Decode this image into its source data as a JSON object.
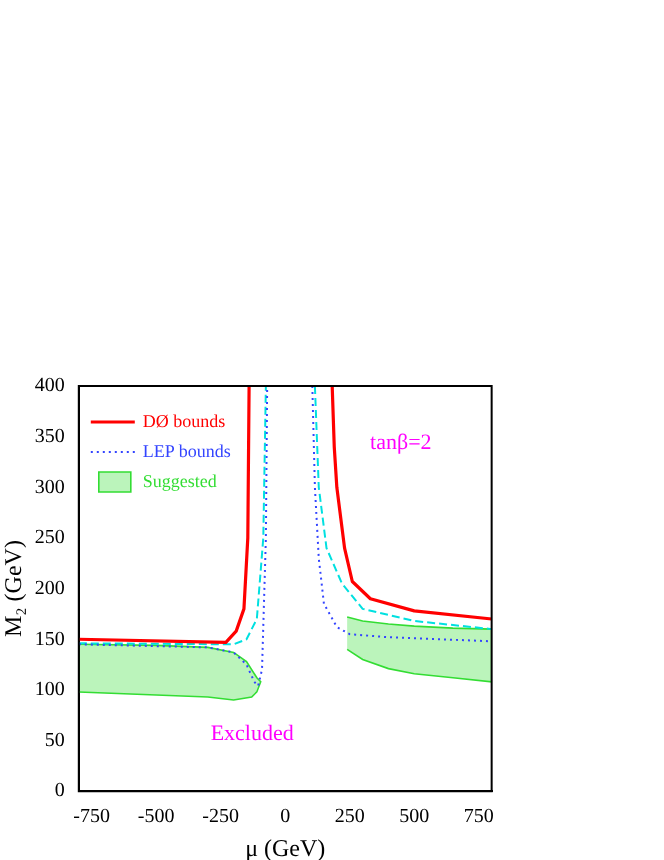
{
  "chart_data": {
    "type": "line",
    "xlabel": "μ (GeV)",
    "ylabel": "M₂ (GeV)",
    "xlim": [
      -800,
      800
    ],
    "ylim": [
      0,
      400
    ],
    "xticks": [
      -750,
      -500,
      -250,
      0,
      250,
      500,
      750
    ],
    "yticks": [
      0,
      50,
      100,
      150,
      200,
      250,
      300,
      350,
      400
    ],
    "grid": false,
    "legend": "top left",
    "marker": "none",
    "series": [
      {
        "name": "DØ bounds",
        "color": "#ff0000",
        "line_style": "solid",
        "x": [
          -800,
          -230,
          -190,
          -160,
          -145,
          -140
        ],
        "values": [
          150,
          147,
          158,
          180,
          250,
          400
        ]
      },
      {
        "color": "#ff0000",
        "line_style": "solid",
        "x": [
          182,
          190,
          200,
          230,
          260,
          330,
          500,
          800
        ],
        "values": [
          400,
          340,
          300,
          240,
          207,
          190,
          178,
          170
        ]
      },
      {
        "name": "LEP bounds",
        "color": "#3344ff",
        "line_style": "dotted",
        "x": [
          -800,
          -300,
          -200,
          -150,
          -120,
          -105,
          -90,
          -75,
          -70
        ],
        "values": [
          145,
          142,
          137,
          125,
          108,
          104,
          120,
          250,
          400
        ]
      },
      {
        "color": "#3344ff",
        "line_style": "dotted",
        "x": [
          105,
          115,
          130,
          150,
          200,
          250,
          400,
          800
        ],
        "values": [
          400,
          300,
          230,
          185,
          162,
          155,
          152,
          148
        ]
      },
      {
        "color": "#00e0e0",
        "line_style": "dashed",
        "x": [
          -800,
          -200,
          -150,
          -110,
          -85,
          -75
        ],
        "values": [
          146,
          145,
          150,
          170,
          250,
          400
        ]
      },
      {
        "color": "#00e0e0",
        "line_style": "dashed",
        "x": [
          115,
          130,
          160,
          220,
          300,
          500,
          800
        ],
        "values": [
          400,
          300,
          240,
          205,
          180,
          168,
          160
        ]
      },
      {
        "name": "Suggested",
        "type": "area",
        "color": "#33dd33",
        "x": [
          -800,
          -500,
          -300,
          -200,
          -150,
          -110,
          -95,
          -110,
          -130,
          -200,
          -300,
          -500,
          -800
        ],
        "values": [
          145,
          144,
          142,
          137,
          128,
          112,
          108,
          98,
          93,
          90,
          93,
          95,
          98
        ]
      },
      {
        "type": "area",
        "color": "#33dd33",
        "x": [
          240,
          300,
          400,
          500,
          650,
          800,
          800,
          650,
          500,
          400,
          300,
          240
        ],
        "values": [
          172,
          168,
          165,
          163,
          161,
          160,
          108,
          112,
          116,
          121,
          130,
          140
        ]
      }
    ],
    "annotations": [
      "tanβ=2",
      "Excluded"
    ]
  }
}
